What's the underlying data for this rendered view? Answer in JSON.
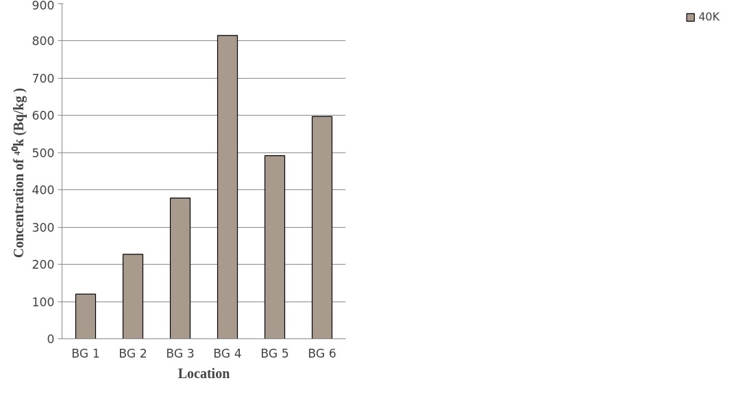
{
  "chart_data": {
    "type": "bar",
    "xlabel": "Location",
    "ylabel": "Concentration  of ⁴⁰k (Bq/kg )",
    "categories": [
      "BG 1",
      "BG 2",
      "BG 3",
      "BG 4",
      "BG 5",
      "BG 6"
    ],
    "series": [
      {
        "name": "40K",
        "color": "#a89b8e",
        "values": [
          120,
          227,
          378,
          815,
          492,
          597
        ]
      }
    ],
    "ylim": [
      0,
      900
    ],
    "yticks": [
      0,
      100,
      200,
      300,
      400,
      500,
      600,
      700,
      800,
      900
    ],
    "grid": "y",
    "legend": "right"
  }
}
